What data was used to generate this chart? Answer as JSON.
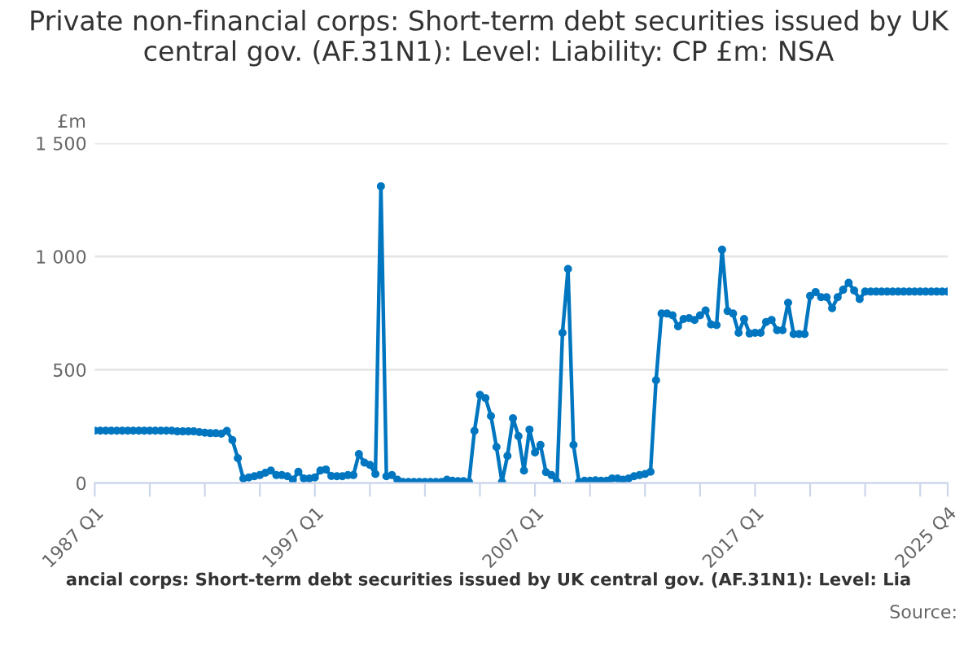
{
  "chart_data": {
    "type": "line",
    "title": "Private non-financial corps: Short-term debt securities issued by UK central gov. (AF.31N1): Level: Liability: CP £m: NSA",
    "ylabel": "£m",
    "categories": [
      "1987 Q1",
      null,
      null,
      null,
      null,
      null,
      null,
      null,
      null,
      null,
      null,
      null,
      null,
      null,
      null,
      null,
      null,
      null,
      null,
      null,
      null,
      null,
      null,
      null,
      null,
      null,
      null,
      null,
      null,
      null,
      null,
      null,
      null,
      null,
      null,
      null,
      null,
      null,
      null,
      null,
      "1997 Q1",
      null,
      null,
      null,
      null,
      null,
      null,
      null,
      null,
      null,
      null,
      null,
      null,
      null,
      null,
      null,
      null,
      null,
      null,
      null,
      null,
      null,
      null,
      null,
      null,
      null,
      null,
      null,
      null,
      null,
      null,
      null,
      null,
      null,
      null,
      null,
      null,
      null,
      null,
      null,
      "2007 Q1",
      null,
      null,
      null,
      null,
      null,
      null,
      null,
      null,
      null,
      null,
      null,
      null,
      null,
      null,
      null,
      null,
      null,
      null,
      null,
      null,
      null,
      null,
      null,
      null,
      null,
      null,
      null,
      null,
      null,
      null,
      null,
      null,
      null,
      null,
      null,
      null,
      null,
      null,
      null,
      "2017 Q1",
      null,
      null,
      null,
      null,
      null,
      null,
      null,
      null,
      null,
      null,
      null,
      null,
      null,
      null,
      null,
      null,
      null,
      null,
      null,
      null,
      null,
      null,
      null,
      null,
      null,
      null,
      null,
      null,
      null,
      null,
      null,
      null,
      null,
      null,
      "2025 Q4"
    ],
    "series": [
      {
        "color": "#0076c0",
        "values": [
          231,
          231,
          231,
          231,
          231,
          231,
          231,
          231,
          231,
          231,
          231,
          231,
          231,
          231,
          231,
          228,
          228,
          228,
          228,
          225,
          222,
          220,
          220,
          218,
          230,
          190,
          110,
          20,
          25,
          30,
          35,
          45,
          55,
          35,
          35,
          30,
          15,
          50,
          20,
          20,
          25,
          55,
          60,
          31,
          30,
          30,
          35,
          35,
          128,
          90,
          80,
          40,
          1310,
          30,
          35,
          15,
          5,
          5,
          5,
          5,
          5,
          5,
          5,
          5,
          15,
          10,
          8,
          8,
          5,
          230,
          389,
          375,
          296,
          159,
          5,
          120,
          286,
          207,
          55,
          236,
          135,
          168,
          48,
          35,
          5,
          663,
          945,
          168,
          5,
          10,
          10,
          12,
          10,
          10,
          20,
          20,
          15,
          20,
          30,
          35,
          40,
          50,
          454,
          748,
          748,
          740,
          692,
          724,
          728,
          720,
          740,
          762,
          700,
          697,
          1030,
          759,
          748,
          663,
          724,
          660,
          663,
          663,
          711,
          720,
          675,
          675,
          796,
          658,
          658,
          658,
          826,
          843,
          820,
          820,
          772,
          820,
          853,
          884,
          850,
          812,
          845,
          845,
          845,
          845,
          845,
          845,
          845,
          845,
          845,
          845,
          845,
          845,
          845,
          845,
          845,
          845
        ]
      }
    ],
    "ylim": [
      0,
      1500
    ],
    "yticks": [
      0,
      500,
      {
        "value": 1000,
        "label": "1 000"
      },
      {
        "value": 1500,
        "label": "1 500"
      }
    ],
    "grid": "y",
    "marker": "circle",
    "line_style": "solid",
    "legend": false,
    "annotations": [
      "ancial corps: Short-term debt securities issued by UK central gov. (AF.31N1): Level: Lia",
      "Source:"
    ]
  }
}
